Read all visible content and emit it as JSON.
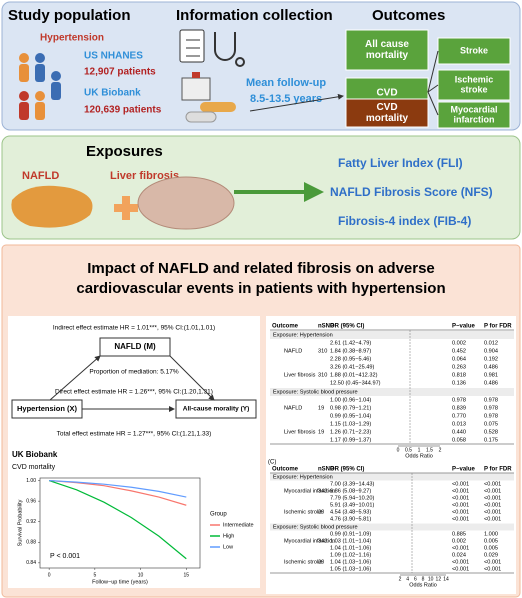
{
  "panel1": {
    "study_title": "Study population",
    "info_title": "Information collection",
    "outcomes_title": "Outcomes",
    "hypertension": "Hypertension",
    "us": "US NHANES",
    "us_n": "12,907 patients",
    "uk": "UK Biobank",
    "uk_n": "120,639 patients",
    "followup": [
      "Mean follow-up",
      "8.5-13.5 years"
    ],
    "outcomes_left": [
      [
        "All cause",
        "mortality"
      ],
      [
        "CVD"
      ],
      [
        "CVD",
        "mortality"
      ]
    ],
    "outcomes_right": [
      [
        "Stroke"
      ],
      [
        "Ischemic",
        "stroke"
      ],
      [
        "Myocardial",
        "infarction"
      ]
    ]
  },
  "panel2": {
    "title": "Exposures",
    "nafld": "NAFLD",
    "fibrosis": "Liver fibrosis",
    "indices": [
      "Fatty Liver Index (FLI)",
      "NAFLD Fibrosis Score (NFS)",
      "Fibrosis-4 index (FIB-4)"
    ]
  },
  "panel3": {
    "title": [
      "Impact of NAFLD and related fibrosis on adverse",
      "cardiovascular events in patients with hypertension"
    ],
    "mediation": {
      "indirect": "Indirect effect estimate HR = 1.01***, 95% CI:(1.01,1.01)",
      "m": "NAFLD (M)",
      "proportion": "Proportion of mediation: 5.17%",
      "direct": "Direct effect estimate HR = 1.26***, 95% CI:(1.20,1.31)",
      "x": "Hypertension (X)",
      "y": "All-cause morality (Y)",
      "total": "Total effect estimate HR = 1.27***, 95% CI:(1.21,1.33)"
    },
    "km": {
      "type": "line",
      "title": "UK Biobank",
      "subtitle": "CVD mortality",
      "ylabel": "Survival Probability",
      "xlabel": "Follow−up time (years)",
      "annotation": "P < 0.001",
      "legend_title": "Group",
      "x": [
        0,
        3,
        6,
        9,
        12,
        15
      ],
      "series": [
        {
          "name": "Intermediate",
          "color": "#f8766d",
          "values": [
            1,
            0.996,
            0.99,
            0.98,
            0.968,
            0.952
          ]
        },
        {
          "name": "High",
          "color": "#00ba38",
          "values": [
            1,
            0.982,
            0.958,
            0.928,
            0.892,
            0.848
          ]
        },
        {
          "name": "Low",
          "color": "#619cff",
          "values": [
            1,
            0.997,
            0.993,
            0.987,
            0.979,
            0.968
          ]
        }
      ],
      "xlim": [
        -1,
        16.5
      ],
      "xticks": [
        0,
        5,
        10,
        15
      ],
      "ylim": [
        0.83,
        1.005
      ],
      "yticks": [
        {
          "value": 1,
          "label": "1.00"
        },
        0.96,
        0.92,
        0.88,
        0.84
      ]
    },
    "forest_b": {
      "header": [
        "Outcome",
        "nSNP",
        "OR (95% CI)",
        "P−value",
        "P for FDR"
      ],
      "sections": [
        {
          "title": "Exposure: Hypertension",
          "rows": [
            [
              "",
              "",
              "2.61 (1.42−4.79)",
              "0.002",
              "0.012"
            ],
            [
              "NAFLD",
              "310",
              "1.84 (0.38−8.97)",
              "0.452",
              "0.904"
            ],
            [
              "",
              "",
              "2.28 (0.95−5.46)",
              "0.064",
              "0.192"
            ],
            [
              "",
              "",
              "3.26 (0.41−25.49)",
              "0.263",
              "0.486"
            ],
            [
              "Liver fibrosis",
              "310",
              "1.88 (0.01−412.32)",
              "0.818",
              "0.981"
            ],
            [
              "",
              "",
              "12.50 (0.45−344.97)",
              "0.136",
              "0.486"
            ]
          ]
        },
        {
          "title": "Exposure: Systolic blood pressure",
          "rows": [
            [
              "",
              "",
              "1.00 (0.96−1.04)",
              "0.978",
              "0.978"
            ],
            [
              "NAFLD",
              "19",
              "0.98 (0.79−1.21)",
              "0.839",
              "0.978"
            ],
            [
              "",
              "",
              "0.99 (0.95−1.04)",
              "0.770",
              "0.978"
            ],
            [
              "",
              "",
              "1.15 (1.03−1.29)",
              "0.013",
              "0.075"
            ],
            [
              "Liver fibrosis",
              "19",
              "1.26 (0.71−2.23)",
              "0.440",
              "0.528"
            ],
            [
              "",
              "",
              "1.17 (0.99−1.37)",
              "0.058",
              "0.175"
            ]
          ]
        }
      ],
      "axis_ticks": [
        "0",
        "0.5",
        "1",
        "1.5",
        "2"
      ],
      "axis_label": "Odds Ratio"
    },
    "forest_c": {
      "label": "(C)",
      "header": [
        "Outcome",
        "nSNP",
        "OR (95% CI)",
        "P−value",
        "P for FDR"
      ],
      "sections": [
        {
          "title": "Exposure: Hypertension",
          "rows": [
            [
              "",
              "",
              "7.00 (3.39−14.43)",
              "<0.001",
              "<0.001"
            ],
            [
              "Myocardial infarction",
              "343",
              "6.86 (5.08−9.27)",
              "<0.001",
              "<0.001"
            ],
            [
              "",
              "",
              "7.79 (5.94−10.20)",
              "<0.001",
              "<0.001"
            ],
            [
              "",
              "",
              "5.91 (3.49−10.01)",
              "<0.001",
              "<0.001"
            ],
            [
              "Ischemic stroke",
              "20",
              "4.54 (3.48−5.93)",
              "<0.001",
              "<0.001"
            ],
            [
              "",
              "",
              "4.76 (3.90−5.81)",
              "<0.001",
              "<0.001"
            ]
          ]
        },
        {
          "title": "Exposure: Systolic blood pressure",
          "rows": [
            [
              "",
              "",
              "0.99 (0.91−1.09)",
              "0.885",
              "1.000"
            ],
            [
              "Myocardial infarction",
              "343",
              "1.03 (1.01−1.04)",
              "0.002",
              "0.005"
            ],
            [
              "",
              "",
              "1.04 (1.01−1.06)",
              "<0.001",
              "0.005"
            ],
            [
              "",
              "",
              "1.09 (1.02−1.16)",
              "0.024",
              "0.029"
            ],
            [
              "Ischemic stroke",
              "20",
              "1.04 (1.03−1.06)",
              "<0.001",
              "<0.001"
            ],
            [
              "",
              "",
              "1.05 (1.03−1.06)",
              "<0.001",
              "<0.001"
            ]
          ]
        }
      ],
      "axis_ticks": [
        "2",
        "4",
        "6",
        "8",
        "10",
        "12",
        "14"
      ],
      "axis_label": "Odds Ratio"
    }
  }
}
